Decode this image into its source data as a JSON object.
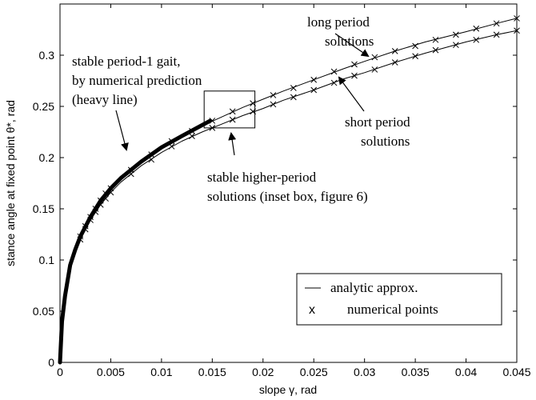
{
  "chart_data": {
    "type": "line",
    "xlabel": "slope γ, rad",
    "ylabel": "stance angle at fixed point θ*, rad",
    "xlim": [
      0,
      0.045
    ],
    "ylim": [
      0,
      0.35
    ],
    "x_ticks": [
      "0",
      "0.005",
      "0.01",
      "0.015",
      "0.02",
      "0.025",
      "0.03",
      "0.035",
      "0.04",
      "0.045"
    ],
    "y_ticks": [
      "0",
      "0.05",
      "0.1",
      "0.15",
      "0.2",
      "0.25",
      "0.3"
    ],
    "x_tick_values": [
      0,
      0.005,
      0.01,
      0.015,
      0.02,
      0.025,
      0.03,
      0.035,
      0.04,
      0.045
    ],
    "y_tick_values": [
      0,
      0.05,
      0.1,
      0.15,
      0.2,
      0.25,
      0.3
    ],
    "series": [
      {
        "name": "analytic approx. (long period)",
        "x": [
          0,
          0.0002,
          0.0005,
          0.001,
          0.0015,
          0.002,
          0.003,
          0.004,
          0.005,
          0.006,
          0.008,
          0.01,
          0.012,
          0.014,
          0.016,
          0.018,
          0.02,
          0.022,
          0.025,
          0.028,
          0.03,
          0.033,
          0.036,
          0.04,
          0.043,
          0.045
        ],
        "y": [
          0,
          0.04,
          0.065,
          0.095,
          0.11,
          0.123,
          0.142,
          0.158,
          0.17,
          0.18,
          0.196,
          0.21,
          0.221,
          0.231,
          0.24,
          0.249,
          0.257,
          0.265,
          0.276,
          0.287,
          0.294,
          0.304,
          0.313,
          0.323,
          0.331,
          0.336
        ]
      },
      {
        "name": "analytic approx. (short period)",
        "x": [
          0,
          0.0002,
          0.0005,
          0.001,
          0.0015,
          0.002,
          0.003,
          0.004,
          0.005,
          0.006,
          0.008,
          0.01,
          0.012,
          0.014,
          0.016,
          0.018,
          0.02,
          0.022,
          0.025,
          0.028,
          0.03,
          0.033,
          0.036,
          0.04,
          0.043,
          0.045
        ],
        "y": [
          0,
          0.04,
          0.065,
          0.095,
          0.109,
          0.12,
          0.139,
          0.154,
          0.166,
          0.176,
          0.192,
          0.205,
          0.216,
          0.225,
          0.233,
          0.241,
          0.248,
          0.256,
          0.266,
          0.277,
          0.283,
          0.293,
          0.302,
          0.313,
          0.32,
          0.324
        ]
      },
      {
        "name": "numerical points (long period)",
        "x": [
          0.002,
          0.0025,
          0.003,
          0.0035,
          0.004,
          0.0045,
          0.005,
          0.007,
          0.009,
          0.011,
          0.013,
          0.015,
          0.017,
          0.019,
          0.021,
          0.023,
          0.025,
          0.027,
          0.029,
          0.031,
          0.033,
          0.035,
          0.037,
          0.039,
          0.041,
          0.043,
          0.045
        ],
        "y": [
          0.123,
          0.133,
          0.142,
          0.15,
          0.158,
          0.165,
          0.17,
          0.188,
          0.203,
          0.216,
          0.226,
          0.236,
          0.245,
          0.253,
          0.261,
          0.268,
          0.276,
          0.284,
          0.291,
          0.298,
          0.304,
          0.309,
          0.315,
          0.32,
          0.326,
          0.331,
          0.336
        ]
      },
      {
        "name": "numerical points (short period)",
        "x": [
          0.002,
          0.0025,
          0.003,
          0.0035,
          0.004,
          0.0045,
          0.005,
          0.007,
          0.009,
          0.011,
          0.013,
          0.015,
          0.017,
          0.019,
          0.021,
          0.023,
          0.025,
          0.027,
          0.029,
          0.031,
          0.033,
          0.035,
          0.037,
          0.039,
          0.041,
          0.043,
          0.045
        ],
        "y": [
          0.12,
          0.13,
          0.139,
          0.147,
          0.154,
          0.16,
          0.166,
          0.184,
          0.198,
          0.211,
          0.221,
          0.229,
          0.237,
          0.245,
          0.252,
          0.259,
          0.266,
          0.273,
          0.28,
          0.286,
          0.293,
          0.299,
          0.305,
          0.31,
          0.315,
          0.32,
          0.324
        ]
      },
      {
        "name": "stable period-1 gait (heavy line)",
        "x": [
          0,
          0.0002,
          0.0005,
          0.001,
          0.0015,
          0.002,
          0.003,
          0.004,
          0.005,
          0.006,
          0.008,
          0.01,
          0.012,
          0.0148
        ],
        "y": [
          0,
          0.04,
          0.065,
          0.095,
          0.11,
          0.123,
          0.142,
          0.158,
          0.17,
          0.18,
          0.196,
          0.21,
          0.221,
          0.236
        ]
      }
    ],
    "inset_box": {
      "x": [
        0.0142,
        0.0192
      ],
      "y": [
        0.229,
        0.265
      ]
    },
    "annotations": {
      "stable_gait": [
        "stable period-1 gait,",
        "by numerical prediction",
        "(heavy line)"
      ],
      "long_period": [
        "long period",
        "solutions"
      ],
      "short_period": [
        "short period",
        "solutions"
      ],
      "higher_period": [
        "stable higher-period",
        "solutions (inset box, figure 6)"
      ]
    },
    "legend": {
      "line_label": "analytic approx.",
      "marker_symbol": "x",
      "marker_label": "numerical points",
      "placement": "bottom-right"
    }
  }
}
